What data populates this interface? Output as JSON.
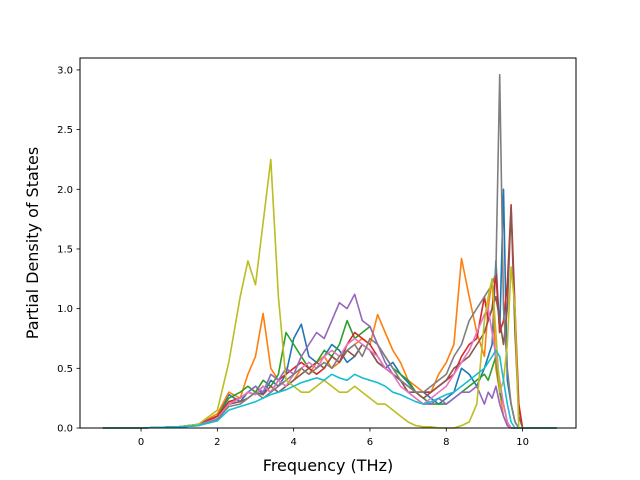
{
  "chart_data": {
    "type": "line",
    "title": "",
    "xlabel": "Frequency (THz)",
    "ylabel": "Partial Density of States",
    "xlim": [
      -1.6,
      11.4
    ],
    "ylim": [
      0.0,
      3.1
    ],
    "xticks": [
      "0",
      "2",
      "4",
      "6",
      "8",
      "10"
    ],
    "xtick_values": [
      0,
      2,
      4,
      6,
      8,
      10
    ],
    "yticks": [
      "0.0",
      "0.5",
      "1.0",
      "1.5",
      "2.0",
      "2.5",
      "3.0"
    ],
    "ytick_values": [
      0.0,
      0.5,
      1.0,
      1.5,
      2.0,
      2.5,
      3.0
    ],
    "grid": false,
    "legend": "none",
    "x": [
      -1.0,
      0.0,
      1.0,
      1.5,
      2.0,
      2.3,
      2.6,
      2.8,
      3.0,
      3.2,
      3.4,
      3.6,
      3.8,
      4.0,
      4.2,
      4.4,
      4.6,
      4.8,
      5.0,
      5.2,
      5.4,
      5.6,
      5.8,
      6.0,
      6.2,
      6.4,
      6.6,
      6.8,
      7.0,
      7.2,
      7.4,
      7.6,
      7.8,
      8.0,
      8.2,
      8.4,
      8.6,
      8.8,
      9.0,
      9.1,
      9.2,
      9.3,
      9.4,
      9.5,
      9.6,
      9.7,
      9.8,
      9.9,
      10.0,
      10.5,
      10.9
    ],
    "series": [
      {
        "color": "#1f77b4",
        "values": [
          0,
          0,
          0.01,
          0.03,
          0.1,
          0.28,
          0.22,
          0.3,
          0.35,
          0.28,
          0.4,
          0.35,
          0.45,
          0.75,
          0.87,
          0.6,
          0.55,
          0.6,
          0.7,
          0.65,
          0.55,
          0.6,
          0.7,
          0.65,
          0.55,
          0.5,
          0.55,
          0.45,
          0.38,
          0.3,
          0.3,
          0.25,
          0.2,
          0.25,
          0.3,
          0.5,
          0.45,
          0.35,
          0.5,
          0.6,
          0.7,
          1.4,
          0.8,
          2.0,
          0.4,
          0.2,
          0.05,
          0,
          0,
          0,
          0
        ]
      },
      {
        "color": "#ff7f0e",
        "values": [
          0,
          0,
          0.01,
          0.03,
          0.12,
          0.3,
          0.25,
          0.45,
          0.6,
          0.96,
          0.5,
          0.4,
          0.35,
          0.4,
          0.5,
          0.45,
          0.55,
          0.6,
          0.5,
          0.55,
          0.65,
          0.7,
          0.75,
          0.7,
          0.95,
          0.8,
          0.65,
          0.55,
          0.4,
          0.35,
          0.3,
          0.3,
          0.45,
          0.55,
          0.7,
          1.42,
          1.1,
          0.8,
          0.6,
          1.0,
          1.25,
          0.5,
          0.3,
          0.1,
          0.02,
          0,
          0,
          0,
          0,
          0,
          0
        ]
      },
      {
        "color": "#2ca02c",
        "values": [
          0,
          0,
          0.01,
          0.03,
          0.1,
          0.25,
          0.3,
          0.35,
          0.3,
          0.4,
          0.35,
          0.45,
          0.8,
          0.7,
          0.6,
          0.5,
          0.55,
          0.65,
          0.6,
          0.7,
          0.9,
          0.75,
          0.8,
          0.85,
          0.7,
          0.6,
          0.5,
          0.45,
          0.4,
          0.3,
          0.25,
          0.2,
          0.2,
          0.2,
          0.25,
          0.3,
          0.35,
          0.4,
          0.45,
          0.4,
          0.5,
          0.6,
          0.3,
          0.2,
          0.05,
          0,
          0,
          0,
          0,
          0,
          0
        ]
      },
      {
        "color": "#d62728",
        "values": [
          0,
          0,
          0.01,
          0.03,
          0.1,
          0.22,
          0.25,
          0.3,
          0.28,
          0.35,
          0.3,
          0.4,
          0.45,
          0.5,
          0.55,
          0.5,
          0.45,
          0.5,
          0.6,
          0.55,
          0.7,
          0.8,
          0.75,
          0.7,
          0.6,
          0.5,
          0.45,
          0.4,
          0.35,
          0.3,
          0.3,
          0.3,
          0.35,
          0.4,
          0.45,
          0.6,
          0.7,
          0.75,
          1.1,
          0.9,
          1.0,
          1.3,
          0.8,
          0.9,
          1.2,
          1.87,
          1.0,
          0.2,
          0,
          0,
          0
        ]
      },
      {
        "color": "#9467bd",
        "values": [
          0,
          0,
          0.01,
          0.03,
          0.08,
          0.2,
          0.25,
          0.3,
          0.35,
          0.3,
          0.45,
          0.4,
          0.5,
          0.45,
          0.6,
          0.7,
          0.8,
          0.75,
          0.9,
          1.05,
          1.0,
          1.12,
          0.9,
          0.85,
          0.7,
          0.55,
          0.45,
          0.4,
          0.3,
          0.25,
          0.2,
          0.2,
          0.25,
          0.2,
          0.25,
          0.3,
          0.3,
          0.35,
          0.2,
          0.3,
          0.25,
          0.35,
          0.2,
          0.1,
          0.02,
          0,
          0,
          0,
          0,
          0,
          0
        ]
      },
      {
        "color": "#8c564b",
        "values": [
          0,
          0,
          0.01,
          0.02,
          0.08,
          0.2,
          0.22,
          0.25,
          0.3,
          0.28,
          0.35,
          0.3,
          0.35,
          0.4,
          0.45,
          0.5,
          0.55,
          0.5,
          0.6,
          0.55,
          0.65,
          0.6,
          0.7,
          0.65,
          0.55,
          0.5,
          0.45,
          0.4,
          0.3,
          0.3,
          0.25,
          0.3,
          0.35,
          0.4,
          0.5,
          0.55,
          0.6,
          0.7,
          0.8,
          0.9,
          1.0,
          1.1,
          0.9,
          0.7,
          1.0,
          1.85,
          0.8,
          0.1,
          0,
          0,
          0
        ]
      },
      {
        "color": "#e377c2",
        "values": [
          0,
          0,
          0.01,
          0.02,
          0.08,
          0.2,
          0.25,
          0.3,
          0.28,
          0.35,
          0.3,
          0.4,
          0.35,
          0.45,
          0.5,
          0.55,
          0.5,
          0.6,
          0.65,
          0.6,
          0.7,
          0.75,
          0.7,
          0.65,
          0.6,
          0.5,
          0.45,
          0.35,
          0.3,
          0.25,
          0.2,
          0.25,
          0.3,
          0.35,
          0.45,
          0.55,
          0.65,
          0.8,
          0.95,
          1.0,
          0.8,
          0.6,
          0.4,
          0.2,
          0.05,
          0,
          0,
          0,
          0,
          0,
          0
        ]
      },
      {
        "color": "#7f7f7f",
        "values": [
          0,
          0,
          0.01,
          0.02,
          0.07,
          0.18,
          0.2,
          0.25,
          0.3,
          0.25,
          0.3,
          0.35,
          0.4,
          0.45,
          0.5,
          0.45,
          0.5,
          0.55,
          0.5,
          0.6,
          0.65,
          0.7,
          0.6,
          0.75,
          0.7,
          0.6,
          0.5,
          0.4,
          0.35,
          0.3,
          0.3,
          0.35,
          0.4,
          0.45,
          0.6,
          0.7,
          0.9,
          1.0,
          1.1,
          1.15,
          1.2,
          1.3,
          2.96,
          1.0,
          0.5,
          0.2,
          0.05,
          0,
          0,
          0,
          0
        ]
      },
      {
        "color": "#bcbd22",
        "values": [
          0,
          0,
          0.01,
          0.03,
          0.15,
          0.55,
          1.1,
          1.4,
          1.2,
          1.72,
          2.25,
          1.1,
          0.4,
          0.35,
          0.3,
          0.3,
          0.35,
          0.4,
          0.35,
          0.3,
          0.3,
          0.35,
          0.3,
          0.25,
          0.2,
          0.2,
          0.15,
          0.1,
          0.05,
          0.02,
          0.01,
          0.01,
          0,
          0,
          0,
          0.02,
          0.05,
          0.2,
          0.9,
          1.1,
          1.25,
          0.8,
          0.3,
          0.4,
          0.7,
          1.35,
          1.0,
          0,
          0,
          0,
          0
        ]
      },
      {
        "color": "#17becf",
        "values": [
          0,
          0,
          0.01,
          0.02,
          0.06,
          0.15,
          0.18,
          0.2,
          0.22,
          0.25,
          0.28,
          0.3,
          0.32,
          0.35,
          0.38,
          0.4,
          0.42,
          0.4,
          0.45,
          0.42,
          0.4,
          0.45,
          0.42,
          0.4,
          0.38,
          0.35,
          0.3,
          0.28,
          0.25,
          0.22,
          0.2,
          0.22,
          0.25,
          0.28,
          0.3,
          0.35,
          0.4,
          0.45,
          0.5,
          0.55,
          0.6,
          0.65,
          0.6,
          0.4,
          0.2,
          0.05,
          0,
          0,
          0,
          0,
          0
        ]
      }
    ]
  }
}
